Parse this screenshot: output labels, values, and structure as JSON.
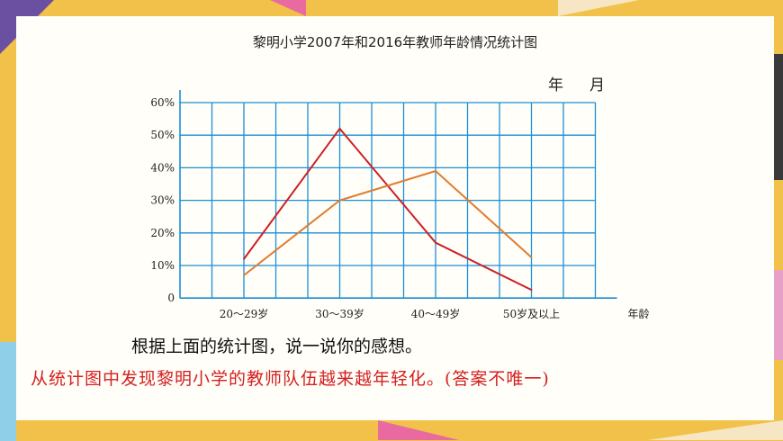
{
  "colors": {
    "grid": "#1a8fd6",
    "series_2007": "#cc1f24",
    "series_2016": "#e07b30",
    "answer": "#d41f1f"
  },
  "chart_data": {
    "type": "line",
    "title": "黎明小学2007年和2016年教师年龄情况统计图",
    "date_label": "年　月",
    "xlabel": "年龄",
    "ylabel": "",
    "categories": [
      "20～29岁",
      "30～39岁",
      "40～49岁",
      "50岁及以上"
    ],
    "y_ticks": [
      "0",
      "10%",
      "20%",
      "30%",
      "40%",
      "50%",
      "60%"
    ],
    "ylim": [
      0,
      60
    ],
    "grid": true,
    "series": [
      {
        "values": [
          12,
          52,
          17,
          2.5
        ]
      },
      {
        "values": [
          7,
          30,
          39,
          12.5
        ]
      }
    ]
  },
  "text": {
    "question": "根据上面的统计图，说一说你的感想。",
    "answer": "从统计图中发现黎明小学的教师队伍越来越年轻化。(答案不唯一)"
  }
}
